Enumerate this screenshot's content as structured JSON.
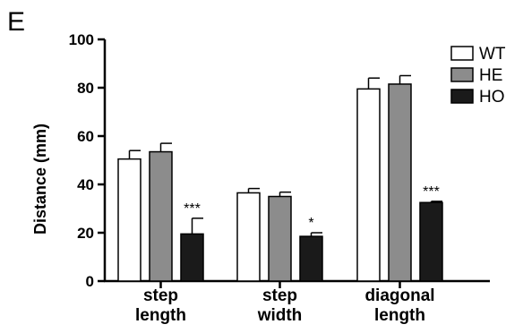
{
  "panel_label": "E",
  "chart_data": {
    "type": "bar",
    "ylabel": "Distance (mm)",
    "ylim": [
      0,
      100
    ],
    "yticks": [
      "0",
      "20",
      "40",
      "60",
      "80",
      "100"
    ],
    "categories": [
      {
        "lines": [
          "step",
          "length"
        ]
      },
      {
        "lines": [
          "step",
          "width"
        ]
      },
      {
        "lines": [
          "diagonal",
          "length"
        ]
      }
    ],
    "series": [
      {
        "name": "WT",
        "color": "#ffffff",
        "values": [
          50.5,
          36.5,
          79.5
        ],
        "errors": [
          3.5,
          1.8,
          4.5
        ]
      },
      {
        "name": "HE",
        "color": "#8c8c8c",
        "values": [
          53.5,
          35.0,
          81.5
        ],
        "errors": [
          3.5,
          1.8,
          3.5
        ]
      },
      {
        "name": "HO",
        "color": "#1a1a1a",
        "values": [
          19.5,
          18.5,
          32.5
        ],
        "errors": [
          6.5,
          1.5,
          0.5
        ]
      }
    ],
    "significance": [
      "***",
      "*",
      "***"
    ],
    "legend_position": "top-right",
    "grid": false
  }
}
